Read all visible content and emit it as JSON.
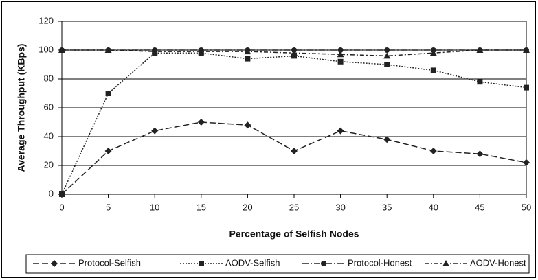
{
  "chart_data": {
    "type": "line",
    "x_label": "Percentage of Selfish Nodes",
    "y_label": "Average Throughput (KBps)",
    "x": [
      0,
      5,
      10,
      15,
      20,
      25,
      30,
      35,
      40,
      45,
      50
    ],
    "xlim": [
      0,
      50
    ],
    "xticks": [
      0,
      5,
      10,
      15,
      20,
      25,
      30,
      35,
      40,
      45,
      50
    ],
    "ylim": [
      0,
      120
    ],
    "yticks": [
      0,
      20,
      40,
      60,
      80,
      100,
      120
    ],
    "grid": true,
    "legend": "bottom",
    "series": [
      {
        "name": "Protocol-Selfish",
        "color": "#222222",
        "marker": "diamond",
        "dash": "9,4",
        "values": [
          0,
          30,
          44,
          50,
          48,
          30,
          44,
          38,
          30,
          28,
          22
        ]
      },
      {
        "name": "AODV-Selfish",
        "color": "#222222",
        "marker": "square",
        "dash": "2,2",
        "values": [
          0,
          70,
          98,
          98,
          94,
          96,
          92,
          90,
          86,
          78,
          74
        ]
      },
      {
        "name": "Protocol-Honest",
        "color": "#222222",
        "marker": "circle",
        "dash": "9,3,2,3",
        "values": [
          100,
          100,
          100,
          100,
          100,
          100,
          100,
          100,
          100,
          100,
          100
        ]
      },
      {
        "name": "AODV-Honest",
        "color": "#222222",
        "marker": "triangle",
        "dash": "6,3,2,3",
        "values": [
          100,
          100,
          99,
          99,
          99,
          98,
          97,
          96,
          98,
          100,
          100
        ]
      }
    ]
  }
}
